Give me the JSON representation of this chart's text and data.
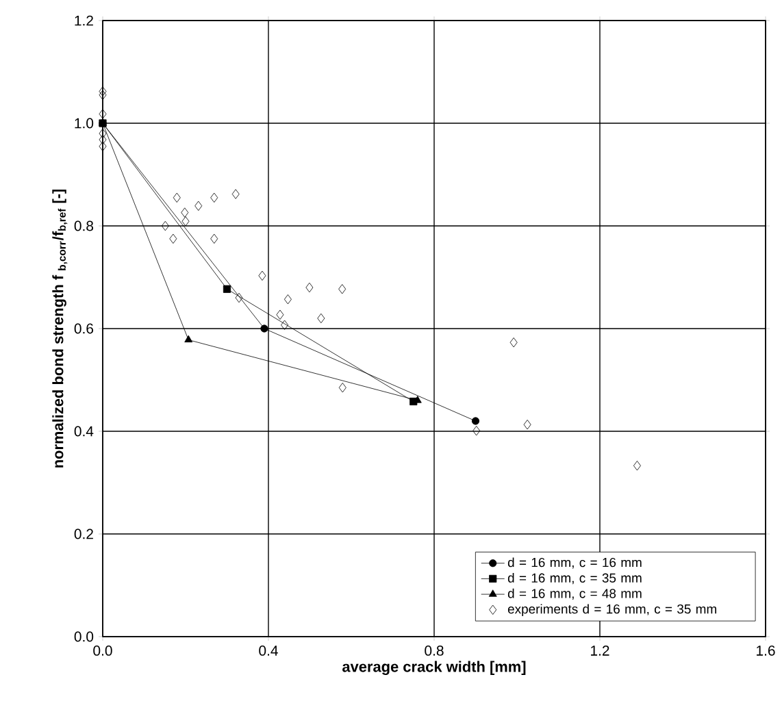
{
  "chart_data": {
    "type": "line",
    "xlabel": "average crack width [mm]",
    "ylabel": "normalized bond strength f $_{b,corr}$/f$_{b,ref}$ [-]",
    "xlim": [
      0,
      1.6
    ],
    "ylim": [
      0,
      1.2
    ],
    "xticks": [
      {
        "value": 0,
        "label": "0.0"
      },
      0.4,
      0.8,
      1.2,
      1.6
    ],
    "yticks": [
      {
        "value": 0,
        "label": "0.0"
      },
      0.2,
      0.4,
      0.6,
      0.8,
      {
        "value": 1,
        "label": "1.0"
      },
      1.2
    ],
    "grid": true,
    "legend": "bottom right",
    "line_style": "solid",
    "series": [
      {
        "name": "d = 16 mm, c = 16 mm",
        "marker": "circle",
        "color": "#000000",
        "x": [
          0,
          0.39,
          0.9
        ],
        "values": [
          1.0,
          0.6,
          0.42
        ]
      },
      {
        "name": "d = 16 mm, c = 35 mm",
        "marker": "square",
        "color": "#000000",
        "x": [
          0,
          0.3,
          0.75
        ],
        "values": [
          1.0,
          0.677,
          0.458
        ]
      },
      {
        "name": "d = 16 mm, c = 48 mm",
        "marker": "triangle",
        "color": "#000000",
        "x": [
          0,
          0.207,
          0.76
        ],
        "values": [
          1.0,
          0.578,
          0.46
        ]
      },
      {
        "name": "experiments d = 16 mm, c = 35 mm",
        "type": "scatter",
        "marker": "diamond",
        "color": "#000000",
        "x": [
          0,
          0,
          0,
          0,
          0,
          0,
          0.179,
          0.151,
          0.17,
          0.198,
          0.2,
          0.231,
          0.269,
          0.269,
          0.321,
          0.329,
          0.385,
          0.447,
          0.499,
          0.428,
          0.439,
          0.527,
          0.578,
          0.579,
          0.992,
          0.902,
          1.025,
          1.29
        ],
        "values": [
          1.062,
          1.055,
          1.018,
          0.98,
          0.968,
          0.955,
          0.855,
          0.8,
          0.775,
          0.826,
          0.809,
          0.839,
          0.855,
          0.775,
          0.862,
          0.66,
          0.703,
          0.657,
          0.68,
          0.627,
          0.607,
          0.62,
          0.677,
          0.485,
          0.573,
          0.401,
          0.413,
          0.333
        ]
      }
    ]
  }
}
